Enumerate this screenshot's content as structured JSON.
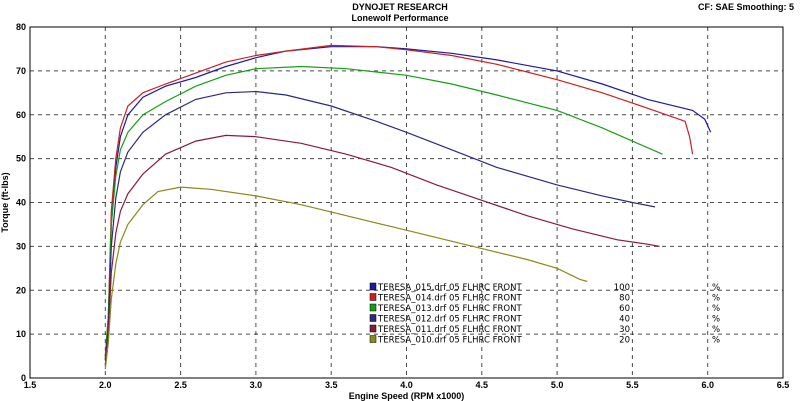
{
  "header": {
    "title": "DYNOJET RESEARCH",
    "subtitle": "Lonewolf Performance",
    "corner": "CF: SAE  Smoothing: 5"
  },
  "chart_data": {
    "type": "line",
    "title": "DYNOJET RESEARCH",
    "subtitle": "Lonewolf Performance",
    "xlabel": "Engine Speed (RPM x1000)",
    "ylabel": "Torque (ft-lbs)",
    "xlim": [
      1.5,
      6.5
    ],
    "ylim": [
      0,
      80
    ],
    "xticks": [
      "1.5",
      "2.0",
      "2.5",
      "3.0",
      "3.5",
      "4.0",
      "4.5",
      "5.0",
      "5.5",
      "6.0",
      "6.5"
    ],
    "yticks": [
      "0",
      "10",
      "20",
      "30",
      "40",
      "50",
      "60",
      "70",
      "80"
    ],
    "grid": true,
    "legend_position": "bottom-right",
    "series": [
      {
        "name": "TERESA_015.drf 05 FLHRC  FRONT",
        "value": "100",
        "unit": "%",
        "color": "#1a1aa6",
        "points": [
          [
            2.0,
            4
          ],
          [
            2.02,
            12
          ],
          [
            2.04,
            35
          ],
          [
            2.07,
            48
          ],
          [
            2.1,
            55
          ],
          [
            2.15,
            60
          ],
          [
            2.25,
            64
          ],
          [
            2.4,
            66.5
          ],
          [
            2.6,
            68.5
          ],
          [
            2.8,
            71
          ],
          [
            3.0,
            73
          ],
          [
            3.2,
            74.5
          ],
          [
            3.5,
            75.5
          ],
          [
            3.8,
            75.5
          ],
          [
            4.0,
            75
          ],
          [
            4.3,
            74
          ],
          [
            4.6,
            72.5
          ],
          [
            5.0,
            70
          ],
          [
            5.3,
            67
          ],
          [
            5.6,
            63.5
          ],
          [
            5.9,
            61
          ],
          [
            5.98,
            59
          ],
          [
            6.02,
            56
          ]
        ]
      },
      {
        "name": "TERESA_014.drf 05 FLHRC  FRONT",
        "value": "80",
        "unit": "%",
        "color": "#cc2020",
        "points": [
          [
            2.0,
            5
          ],
          [
            2.02,
            14
          ],
          [
            2.04,
            38
          ],
          [
            2.07,
            50
          ],
          [
            2.1,
            57
          ],
          [
            2.15,
            62
          ],
          [
            2.25,
            65
          ],
          [
            2.4,
            67
          ],
          [
            2.6,
            69.5
          ],
          [
            2.8,
            72
          ],
          [
            3.0,
            73.5
          ],
          [
            3.2,
            74.5
          ],
          [
            3.5,
            75.8
          ],
          [
            3.8,
            75.5
          ],
          [
            4.0,
            74.8
          ],
          [
            4.3,
            73.5
          ],
          [
            4.6,
            71.5
          ],
          [
            5.0,
            68
          ],
          [
            5.3,
            65
          ],
          [
            5.6,
            61.5
          ],
          [
            5.85,
            58.5
          ],
          [
            5.88,
            55
          ],
          [
            5.9,
            51
          ]
        ]
      },
      {
        "name": "TERESA_013.drf 05 FLHRC  FRONT",
        "value": "60",
        "unit": "%",
        "color": "#15a015",
        "points": [
          [
            2.0,
            5
          ],
          [
            2.02,
            14
          ],
          [
            2.04,
            35
          ],
          [
            2.07,
            46
          ],
          [
            2.1,
            52
          ],
          [
            2.15,
            56
          ],
          [
            2.25,
            60
          ],
          [
            2.4,
            63
          ],
          [
            2.6,
            66.5
          ],
          [
            2.8,
            69
          ],
          [
            3.0,
            70.5
          ],
          [
            3.3,
            71
          ],
          [
            3.6,
            70.5
          ],
          [
            4.0,
            69
          ],
          [
            4.3,
            67
          ],
          [
            4.6,
            64.5
          ],
          [
            5.0,
            61
          ],
          [
            5.3,
            57
          ],
          [
            5.5,
            54
          ],
          [
            5.7,
            51
          ]
        ]
      },
      {
        "name": "TERESA_012.drf 05 FLHRC  FRONT",
        "value": "40",
        "unit": "%",
        "color": "#2a2a80",
        "points": [
          [
            2.0,
            4
          ],
          [
            2.02,
            12
          ],
          [
            2.04,
            30
          ],
          [
            2.07,
            41
          ],
          [
            2.1,
            47
          ],
          [
            2.15,
            51.5
          ],
          [
            2.25,
            56
          ],
          [
            2.4,
            60
          ],
          [
            2.6,
            63.5
          ],
          [
            2.8,
            65
          ],
          [
            3.0,
            65.3
          ],
          [
            3.2,
            64.5
          ],
          [
            3.5,
            62
          ],
          [
            3.8,
            58.5
          ],
          [
            4.0,
            56
          ],
          [
            4.3,
            52
          ],
          [
            4.6,
            48
          ],
          [
            5.0,
            44
          ],
          [
            5.3,
            41.5
          ],
          [
            5.5,
            40
          ],
          [
            5.65,
            39
          ]
        ]
      },
      {
        "name": "TERESA_011.drf 05 FLHRC  FRONT",
        "value": "30",
        "unit": "%",
        "color": "#8a1a3a",
        "points": [
          [
            2.0,
            3
          ],
          [
            2.02,
            10
          ],
          [
            2.04,
            24
          ],
          [
            2.07,
            33
          ],
          [
            2.1,
            38
          ],
          [
            2.15,
            42
          ],
          [
            2.25,
            46.5
          ],
          [
            2.4,
            51
          ],
          [
            2.6,
            54
          ],
          [
            2.8,
            55.3
          ],
          [
            3.0,
            55
          ],
          [
            3.3,
            53.5
          ],
          [
            3.6,
            51
          ],
          [
            3.9,
            48
          ],
          [
            4.2,
            44
          ],
          [
            4.5,
            40.5
          ],
          [
            4.8,
            37
          ],
          [
            5.1,
            34
          ],
          [
            5.4,
            31.5
          ],
          [
            5.6,
            30.5
          ],
          [
            5.68,
            30
          ]
        ]
      },
      {
        "name": "TERESA_010.drf 05 FLHRC  FRONT",
        "value": "20",
        "unit": "%",
        "color": "#8a8a1a",
        "points": [
          [
            2.0,
            2
          ],
          [
            2.02,
            8
          ],
          [
            2.04,
            18
          ],
          [
            2.07,
            26
          ],
          [
            2.1,
            31
          ],
          [
            2.15,
            35
          ],
          [
            2.25,
            39.5
          ],
          [
            2.35,
            42.5
          ],
          [
            2.5,
            43.5
          ],
          [
            2.7,
            43
          ],
          [
            3.0,
            41.5
          ],
          [
            3.3,
            39.5
          ],
          [
            3.6,
            37
          ],
          [
            3.9,
            34.5
          ],
          [
            4.2,
            32
          ],
          [
            4.5,
            29.5
          ],
          [
            4.8,
            27
          ],
          [
            5.0,
            25
          ],
          [
            5.15,
            22.5
          ],
          [
            5.2,
            22
          ]
        ]
      }
    ]
  }
}
